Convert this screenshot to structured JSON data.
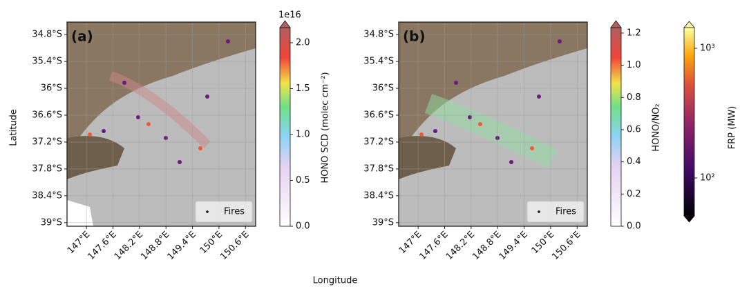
{
  "figure": {
    "x_label": "Longitude",
    "y_label": "Latitude",
    "lat_lim": [
      -34.52,
      -39.08
    ],
    "lat_ticks": [
      {
        "value": -34.8,
        "label": "34.8°S"
      },
      {
        "value": -35.4,
        "label": "35.4°S"
      },
      {
        "value": -36,
        "label": "36°S"
      },
      {
        "value": -36.6,
        "label": "36.6°S"
      },
      {
        "value": -37.2,
        "label": "37.2°S"
      },
      {
        "value": -37.8,
        "label": "37.8°S"
      },
      {
        "value": -38.4,
        "label": "38.4°S"
      },
      {
        "value": -39,
        "label": "39°S"
      }
    ],
    "lon_lim": [
      146.56,
      150.83
    ],
    "lon_ticks": [
      {
        "value": 147,
        "label": "147°E"
      },
      {
        "value": 147.6,
        "label": "147.6°E"
      },
      {
        "value": 148.2,
        "label": "148.2°E"
      },
      {
        "value": 148.8,
        "label": "148.8°E"
      },
      {
        "value": 149.4,
        "label": "149.4°E"
      },
      {
        "value": 150,
        "label": "150°E"
      },
      {
        "value": 150.6,
        "label": "150.6°E"
      }
    ],
    "panels": [
      {
        "label": "(a)",
        "legend": "Fires",
        "colorbar": {
          "label": "HONO SCD (molec cm⁻²)",
          "offset": "1e16",
          "lim": [
            0,
            2.165
          ],
          "ticks": [
            {
              "value": 0,
              "label": "0.0"
            },
            {
              "value": 0.5,
              "label": "0.5"
            },
            {
              "value": 1,
              "label": "1.0"
            },
            {
              "value": 1.5,
              "label": "1.5"
            },
            {
              "value": 2,
              "label": "2.0"
            }
          ]
        }
      },
      {
        "label": "(b)",
        "legend": "Fires",
        "colorbar": {
          "label": "HONO/NO₂",
          "lim": [
            0,
            1.234
          ],
          "ticks": [
            {
              "value": 0,
              "label": "0.0"
            },
            {
              "value": 0.2,
              "label": "0.2"
            },
            {
              "value": 0.4,
              "label": "0.4"
            },
            {
              "value": 0.6,
              "label": "0.6"
            },
            {
              "value": 0.8,
              "label": "0.8"
            },
            {
              "value": 1,
              "label": "1.0"
            },
            {
              "value": 1.2,
              "label": "1.2"
            }
          ]
        }
      }
    ],
    "frp_colorbar": {
      "label": "FRP (MW)",
      "lim": [
        51,
        1444
      ],
      "log": true,
      "ticks": [
        {
          "value": 100,
          "label": "10²"
        },
        {
          "value": 1000,
          "label": "10³"
        }
      ]
    }
  }
}
